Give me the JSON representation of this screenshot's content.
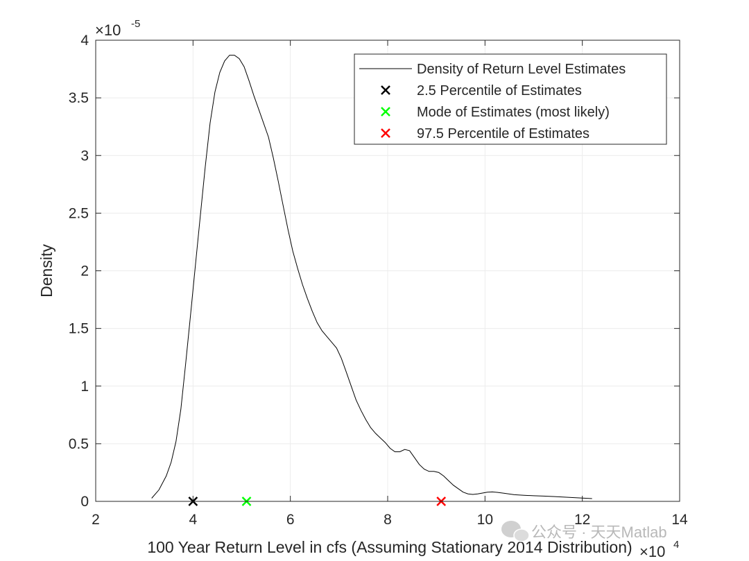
{
  "chart_data": {
    "type": "line",
    "xlabel": "100 Year Return Level in cfs (Assuming Stationary 2014 Distribution)",
    "ylabel": "Density",
    "xlim": [
      20000,
      140000
    ],
    "ylim": [
      0,
      4e-05
    ],
    "x_ticks": [
      20000,
      40000,
      60000,
      80000,
      100000,
      120000,
      140000
    ],
    "x_tick_labels": [
      "2",
      "4",
      "6",
      "8",
      "10",
      "12",
      "14"
    ],
    "y_ticks": [
      0,
      5e-06,
      1e-05,
      1.5e-05,
      2e-05,
      2.5e-05,
      3e-05,
      3.5e-05,
      4e-05
    ],
    "y_tick_labels": [
      "0",
      "0.5",
      "1",
      "1.5",
      "2",
      "2.5",
      "3",
      "3.5",
      "4"
    ],
    "x_exponent_label": "×10",
    "x_exponent_power": "4",
    "y_exponent_label": "×10",
    "y_exponent_power": "-5",
    "grid": true,
    "box": true,
    "legend_position": "top-right",
    "series": [
      {
        "name": "Density of Return Level Estimates",
        "kind": "line",
        "color": "#000000",
        "x": [
          31500,
          33000,
          34500,
          35500,
          36500,
          37500,
          38500,
          39500,
          40500,
          41500,
          42500,
          43500,
          44500,
          45500,
          46500,
          47500,
          48500,
          49500,
          50500,
          51500,
          52500,
          53500,
          54500,
          55500,
          56500,
          57500,
          58500,
          59500,
          60500,
          61500,
          62500,
          63500,
          64500,
          65500,
          66500,
          67500,
          68500,
          69500,
          70500,
          71500,
          72500,
          73500,
          74500,
          75500,
          76500,
          77500,
          78500,
          79500,
          80500,
          81500,
          82500,
          83500,
          84500,
          85500,
          86500,
          87500,
          88500,
          89500,
          90500,
          91500,
          92500,
          93500,
          94500,
          95500,
          96500,
          97500,
          98500,
          99500,
          100500,
          101500,
          102500,
          104000,
          106000,
          108000,
          110000,
          112000,
          114000,
          116000,
          118000,
          120000,
          122000
        ],
        "y": [
          2.7e-07,
          1e-06,
          2.2e-06,
          3.4e-06,
          5.2e-06,
          8e-06,
          1.2e-05,
          1.62e-05,
          2.05e-05,
          2.48e-05,
          2.9e-05,
          3.28e-05,
          3.55e-05,
          3.72e-05,
          3.82e-05,
          3.87e-05,
          3.87e-05,
          3.84e-05,
          3.77e-05,
          3.65e-05,
          3.52e-05,
          3.4e-05,
          3.28e-05,
          3.16e-05,
          2.98e-05,
          2.78e-05,
          2.57e-05,
          2.36e-05,
          2.17e-05,
          2.02e-05,
          1.88e-05,
          1.76e-05,
          1.65e-05,
          1.55e-05,
          1.48e-05,
          1.43e-05,
          1.38e-05,
          1.33e-05,
          1.24e-05,
          1.12e-05,
          1e-05,
          8.8e-06,
          7.9e-06,
          7.1e-06,
          6.4e-06,
          5.9e-06,
          5.5e-06,
          5.1e-06,
          4.6e-06,
          4.3e-06,
          4.3e-06,
          4.5e-06,
          4.4e-06,
          3.8e-06,
          3.2e-06,
          2.8e-06,
          2.6e-06,
          2.6e-06,
          2.5e-06,
          2.2e-06,
          1.8e-06,
          1.4e-06,
          1.1e-06,
          8e-07,
          6.5e-07,
          6e-07,
          6.5e-07,
          7.2e-07,
          8e-07,
          8.2e-07,
          7.8e-07,
          7e-07,
          5.8e-07,
          5.3e-07,
          4.9e-07,
          4.6e-07,
          4.2e-07,
          3.7e-07,
          3.3e-07,
          2.8e-07,
          2.4e-07
        ]
      },
      {
        "name": "2.5 Percentile of Estimates",
        "kind": "marker",
        "marker": "x",
        "color": "#000000",
        "x": [
          40000
        ],
        "y": [
          0
        ]
      },
      {
        "name": "Mode of Estimates (most likely)",
        "kind": "marker",
        "marker": "x",
        "color": "#00ff00",
        "x": [
          51000
        ],
        "y": [
          0
        ]
      },
      {
        "name": "97.5 Percentile of Estimates",
        "kind": "marker",
        "marker": "x",
        "color": "#ff0000",
        "x": [
          91000
        ],
        "y": [
          0
        ]
      }
    ]
  },
  "watermark": {
    "text": "公众号 · 天天Matlab",
    "icon": "wechat-icon"
  }
}
